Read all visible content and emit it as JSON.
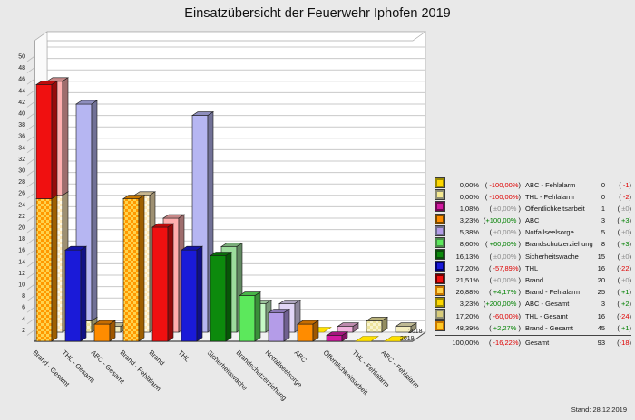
{
  "title": "Einsatzübersicht der Feuerwehr Iphofen 2019",
  "page": {
    "background": "#E9E9E9",
    "stand_label": "Stand: 28.12.2019"
  },
  "chart_data": {
    "type": "bar",
    "title": "Einsatzübersicht der Feuerwehr Iphofen 2019",
    "ylim": [
      0,
      52
    ],
    "ytick_step": 2,
    "grid": true,
    "legend_position": "right",
    "depth_axis_labels": [
      "2018",
      "2019"
    ],
    "categories": [
      "Brand - Gesamt",
      "THL - Gesamt",
      "ABC - Gesamt",
      "Brand - Fehlalarm",
      "Brand",
      "THL",
      "Sicherheitswache",
      "Brandschutzerziehung",
      "Notfallseelsorge",
      "ABC",
      "Öffentlichkeitsarbeit",
      "THL - Fehlalarm",
      "ABC - Fehlalarm"
    ],
    "series": [
      {
        "name": "2019",
        "values": [
          45,
          16,
          3,
          25,
          20,
          16,
          15,
          8,
          5,
          3,
          1,
          0,
          0
        ]
      },
      {
        "name": "2018",
        "values": [
          44,
          40,
          1,
          24,
          20,
          38,
          15,
          5,
          5,
          0,
          1,
          2,
          1
        ]
      }
    ],
    "bars": [
      {
        "label": "Brand - Gesamt",
        "front": [
          {
            "v": 25,
            "fill": "hatch_orange"
          },
          {
            "v": 20,
            "fill": "red"
          }
        ],
        "back": [
          {
            "v": 24,
            "fill": "hatch_pale"
          },
          {
            "v": 20,
            "fill": "red_back"
          }
        ]
      },
      {
        "label": "THL - Gesamt",
        "front": [
          {
            "v": 16,
            "fill": "blue"
          }
        ],
        "back": [
          {
            "v": 2,
            "fill": "hatch_yellow_pale"
          },
          {
            "v": 38,
            "fill": "blue_back"
          }
        ]
      },
      {
        "label": "ABC - Gesamt",
        "front": [
          {
            "v": 3,
            "fill": "orange"
          }
        ],
        "back": [
          {
            "v": 1,
            "fill": "pale_yellow"
          }
        ]
      },
      {
        "label": "Brand - Fehlalarm",
        "front": [
          {
            "v": 25,
            "fill": "hatch_orange"
          }
        ],
        "back": [
          {
            "v": 24,
            "fill": "hatch_pale"
          }
        ]
      },
      {
        "label": "Brand",
        "front": [
          {
            "v": 20,
            "fill": "red"
          }
        ],
        "back": [
          {
            "v": 20,
            "fill": "red_back"
          }
        ]
      },
      {
        "label": "THL",
        "front": [
          {
            "v": 16,
            "fill": "blue"
          }
        ],
        "back": [
          {
            "v": 38,
            "fill": "blue_back"
          }
        ]
      },
      {
        "label": "Sicherheitswache",
        "front": [
          {
            "v": 15,
            "fill": "green_dark"
          }
        ],
        "back": [
          {
            "v": 15,
            "fill": "green_dark_back"
          }
        ]
      },
      {
        "label": "Brandschutzerziehung",
        "front": [
          {
            "v": 8,
            "fill": "green_light"
          }
        ],
        "back": [
          {
            "v": 5,
            "fill": "green_light_back"
          }
        ]
      },
      {
        "label": "Notfallseelsorge",
        "front": [
          {
            "v": 5,
            "fill": "violet"
          }
        ],
        "back": [
          {
            "v": 5,
            "fill": "violet_back"
          }
        ]
      },
      {
        "label": "ABC",
        "front": [
          {
            "v": 3,
            "fill": "orange"
          }
        ],
        "back": [],
        "back_zero": "zero_marker"
      },
      {
        "label": "Öffentlichkeitsarbeit",
        "front": [
          {
            "v": 1,
            "fill": "magenta"
          }
        ],
        "back": [
          {
            "v": 1,
            "fill": "magenta_back"
          }
        ]
      },
      {
        "label": "THL - Fehlalarm",
        "front": [],
        "front_zero": "zero_marker",
        "back": [
          {
            "v": 2,
            "fill": "hatch_yellow_pale"
          }
        ]
      },
      {
        "label": "ABC - Fehlalarm",
        "front": [],
        "front_zero": "zero_marker",
        "back": [
          {
            "v": 1,
            "fill": "pale_yellow"
          }
        ]
      }
    ]
  },
  "palette": {
    "sign_colors": {
      "pos": "#008000",
      "neg": "#DE0000",
      "zero": "#8C8C8C"
    },
    "fills": {
      "red": "#F01010",
      "red_back": "#FFAFAF",
      "blue": "#1A1AD8",
      "blue_back": "#B6B6F2",
      "orange": "#FF8C00",
      "pale_yellow": "#F4EDBE",
      "green_dark": "#0C8A0C",
      "green_dark_back": "#9CDC9C",
      "green_light": "#5CE85C",
      "green_light_back": "#C6F8C6",
      "violet": "#B49CE8",
      "violet_back": "#E2D6F6",
      "magenta": "#D219A0",
      "magenta_back": "#F2B2DE",
      "zero_marker": "#FFE000"
    },
    "patterns": {
      "hatch_orange": [
        "#FF9900",
        "#FFD34D"
      ],
      "hatch_pale": [
        "#FFE9B8",
        "#FFF8E0"
      ],
      "hatch_yellow_pale": [
        "#EDE49C",
        "#F8F4CE"
      ]
    }
  },
  "legend": {
    "rows": [
      {
        "pct": "0,00%",
        "chg": " -100,00%",
        "sign": "neg",
        "label": "ABC - Fehlalarm",
        "count": "0",
        "cchg": " -1",
        "swatch_fill": "#FFD700",
        "swatch_border": "#9B8B00"
      },
      {
        "pct": "0,00%",
        "chg": " -100,00%",
        "sign": "neg",
        "label": "THL - Fehlalarm",
        "count": "0",
        "cchg": " -2",
        "swatch_fill": "#F5E990",
        "swatch_border": "#8C8C74"
      },
      {
        "pct": "1,08%",
        "chg": " ±0,00% ",
        "sign": "zero",
        "label": "Öffentlichkeitsarbeit",
        "count": "1",
        "cchg": " ±0",
        "swatch_fill": "#D219A0",
        "swatch_border": "#6E0A52"
      },
      {
        "pct": "3,23%",
        "chg": "+100,00% ",
        "sign": "pos",
        "label": "ABC",
        "count": "3",
        "cchg": " +3",
        "swatch_fill": "#FF8C00",
        "swatch_border": "#7A4A00"
      },
      {
        "pct": "5,38%",
        "chg": " ±0,00% ",
        "sign": "zero",
        "label": "Notfallseelsorge",
        "count": "5",
        "cchg": " ±0",
        "swatch_fill": "#B49CE8",
        "swatch_border": "#6E6E8C"
      },
      {
        "pct": "8,60%",
        "chg": " +60,00% ",
        "sign": "pos",
        "label": "Brandschutzerziehung",
        "count": "8",
        "cchg": " +3",
        "swatch_fill": "#5CE85C",
        "swatch_border": "#4A8C4A"
      },
      {
        "pct": "16,13%",
        "chg": " ±0,00% ",
        "sign": "zero",
        "label": "Sicherheitswache",
        "count": "15",
        "cchg": " ±0",
        "swatch_fill": "#0C8A0C",
        "swatch_border": "#0A4A0A"
      },
      {
        "pct": "17,20%",
        "chg": " -57,89%",
        "sign": "neg",
        "label": "THL",
        "count": "16",
        "cchg": "-22",
        "swatch_fill": "#1A1AD8",
        "swatch_border": "#00006E"
      },
      {
        "pct": "21,51%",
        "chg": " ±0,00% ",
        "sign": "zero",
        "label": "Brand",
        "count": "20",
        "cchg": " ±0",
        "swatch_fill": "#F01010",
        "swatch_border": "#6E0000"
      },
      {
        "pct": "26,88%",
        "chg": " +4,17% ",
        "sign": "pos",
        "label": "Brand - Fehlalarm",
        "count": "25",
        "cchg": " +1",
        "swatch_fill": "#FFD34D",
        "swatch_border": "#C87800"
      },
      {
        "pct": "3,23%",
        "chg": "+200,00% ",
        "sign": "pos",
        "label": "ABC - Gesamt",
        "count": "3",
        "cchg": " +2",
        "swatch_fill": "#FFD700",
        "swatch_border": "#9B8B00"
      },
      {
        "pct": "17,20%",
        "chg": " -60,00%",
        "sign": "neg",
        "label": "THL - Gesamt",
        "count": "16",
        "cchg": "-24",
        "swatch_fill": "#D8CC7A",
        "swatch_border": "#8C8C74"
      },
      {
        "pct": "48,39%",
        "chg": " +2,27% ",
        "sign": "pos",
        "label": "Brand - Gesamt",
        "count": "45",
        "cchg": " +1",
        "swatch_fill": "#FFC926",
        "swatch_border": "#C87800"
      }
    ],
    "total": {
      "pct": "100,00%",
      "chg": " -16,22%",
      "sign": "neg",
      "label": "Gesamt",
      "count": "93",
      "cchg": "-18"
    }
  }
}
